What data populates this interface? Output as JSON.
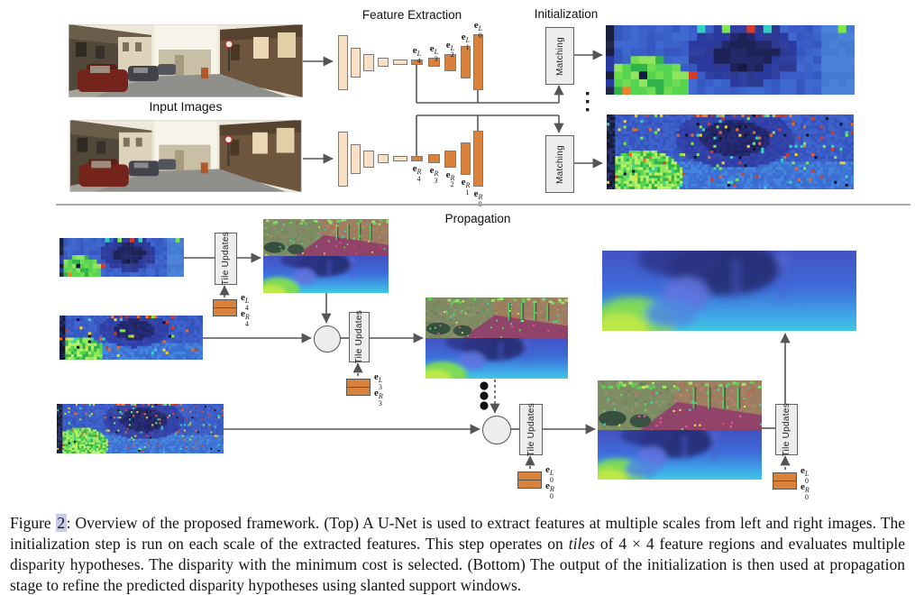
{
  "figure": {
    "top": {
      "feature_extraction_label": "Feature Extraction",
      "initialization_label": "Initialization",
      "input_images_label": "Input Images",
      "matching_label": "Matching",
      "left_feature_labels": [
        "e_4^L",
        "e_3^L",
        "e_2^L",
        "e_1^L",
        "e_0^L"
      ],
      "right_feature_labels": [
        "e_4^R",
        "e_3^R",
        "e_2^R",
        "e_1^R",
        "e_0^R"
      ]
    },
    "bottom": {
      "propagation_label": "Propagation",
      "tile_updates_label": "Tile Updates",
      "stage_feature_labels": [
        [
          "e_4^L",
          "e_4^R"
        ],
        [
          "e_3^L",
          "e_3^R"
        ],
        [
          "e_0^L",
          "e_0^R"
        ],
        [
          "e_0^L",
          "e_0^R"
        ]
      ]
    }
  },
  "caption": {
    "prefix": "Figure ",
    "number": "2",
    "part1": ": Overview of the proposed framework. (Top) A U-Net is used to extract features at multiple scales from left and right images. The initialization step is run on each scale of the extracted features. This step operates on ",
    "italic": "tiles",
    "part2": " of 4 × 4 feature regions and evaluates multiple disparity hypotheses. The disparity with the minimum cost is selected. (Bottom) The output of the initialization is then used at propagation stage to refine the predicted disparity hypotheses using slanted support windows."
  },
  "palette": {
    "bar_orange": "#d9823b",
    "bar_light": "#f8e0c6",
    "box_fill": "#ededed",
    "box_border": "#606060",
    "connector": "#555555",
    "divider": "#a8a8a8",
    "figure_link_highlight": "#c8caec",
    "init_map_dark_navy": "#1d2257",
    "init_map_blue": "#3a5cc8",
    "init_map_green": "#6fdc52",
    "tile_viz_olive": "#7e8c64",
    "tile_viz_magenta": "#903e6a",
    "disparity_cyan": "#40c8e0"
  }
}
